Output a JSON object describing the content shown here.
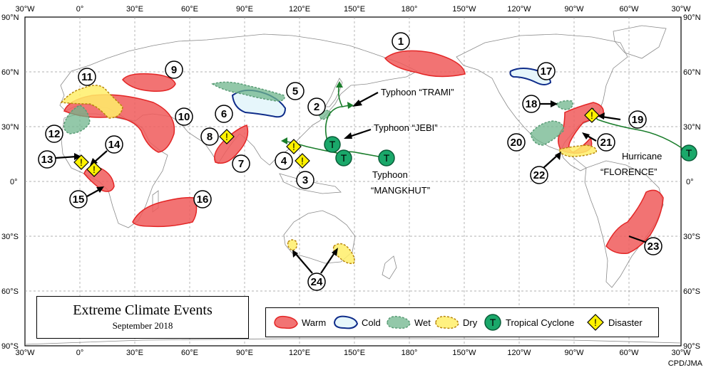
{
  "title": "Extreme Climate Events",
  "subtitle": "September 2018",
  "credit": "CPD/JMA",
  "top_ticks": [
    "30°W",
    "0°",
    "30°E",
    "60°E",
    "90°E",
    "120°E",
    "150°E",
    "180°",
    "150°W",
    "120°W",
    "90°W",
    "60°W",
    "30°W"
  ],
  "lat_ticks": [
    "90°N",
    "60°N",
    "30°N",
    "0°",
    "30°S",
    "60°S",
    "90°S"
  ],
  "legend": {
    "warm": "Warm",
    "cold": "Cold",
    "wet": "Wet",
    "dry": "Dry",
    "tc": "Tropical  Cyclone",
    "disaster": "Disaster"
  },
  "event_numbers": [
    "1",
    "2",
    "3",
    "4",
    "5",
    "6",
    "7",
    "8",
    "9",
    "10",
    "11",
    "12",
    "13",
    "14",
    "15",
    "16",
    "17",
    "18",
    "19",
    "20",
    "21",
    "22",
    "23",
    "24"
  ],
  "storms": {
    "trami": "Typhoon “TRAMI”",
    "jebi": "Typhoon “JEBI”",
    "mangkhut_1": "Typhoon",
    "mangkhut_2": "“MANGKHUT”",
    "florence_1": "Hurricane",
    "florence_2": "“FLORENCE”"
  },
  "symbols": {
    "tc": "T",
    "disaster": "!"
  },
  "colors": {
    "warm": "#f05a5a",
    "cold": "#0e2c8a",
    "wet": "#6fb58c",
    "dry": "#ffef6a",
    "tc": "#1aa86a",
    "disaster": "#fff200"
  }
}
